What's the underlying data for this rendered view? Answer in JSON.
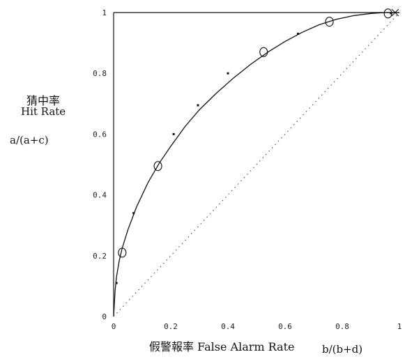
{
  "chart_data": {
    "type": "line",
    "y_title_cn": "猜中率",
    "y_title_en": "Hit Rate",
    "y_formula": "a/(a+c)",
    "x_title": "假警報率 False Alarm Rate",
    "x_formula": "b/(b+d)",
    "xlim": [
      0,
      1
    ],
    "ylim": [
      0,
      1
    ],
    "x_ticks": [
      "0",
      "0.2",
      "0.4",
      "0.6",
      "0.8",
      "1"
    ],
    "y_ticks": [
      "0",
      "0.2",
      "0.4",
      "0.6",
      "0.8",
      "1"
    ],
    "grid": false,
    "series": [
      {
        "style": "solid-curve",
        "x": [
          0,
          0.005,
          0.01,
          0.02,
          0.03,
          0.05,
          0.08,
          0.12,
          0.16,
          0.2,
          0.25,
          0.3,
          0.36,
          0.42,
          0.48,
          0.54,
          0.6,
          0.66,
          0.72,
          0.78,
          0.84,
          0.9,
          0.95,
          1.0
        ],
        "y": [
          0,
          0.085,
          0.13,
          0.185,
          0.225,
          0.285,
          0.36,
          0.44,
          0.505,
          0.56,
          0.625,
          0.68,
          0.735,
          0.785,
          0.83,
          0.87,
          0.905,
          0.935,
          0.96,
          0.978,
          0.99,
          0.997,
          1.0,
          1.0
        ]
      },
      {
        "style": "markers-circle",
        "x": [
          0.03,
          0.155,
          0.525,
          0.755,
          0.96
        ],
        "y": [
          0.21,
          0.495,
          0.87,
          0.97,
          0.997
        ]
      },
      {
        "style": "markers-dot",
        "x": [
          0.01,
          0.07,
          0.21,
          0.295,
          0.4,
          0.645,
          0.97
        ],
        "y": [
          0.11,
          0.34,
          0.6,
          0.695,
          0.8,
          0.93,
          0.998
        ]
      },
      {
        "style": "dotted-diagonal",
        "x": [
          0,
          1
        ],
        "y": [
          0,
          1
        ]
      }
    ]
  }
}
